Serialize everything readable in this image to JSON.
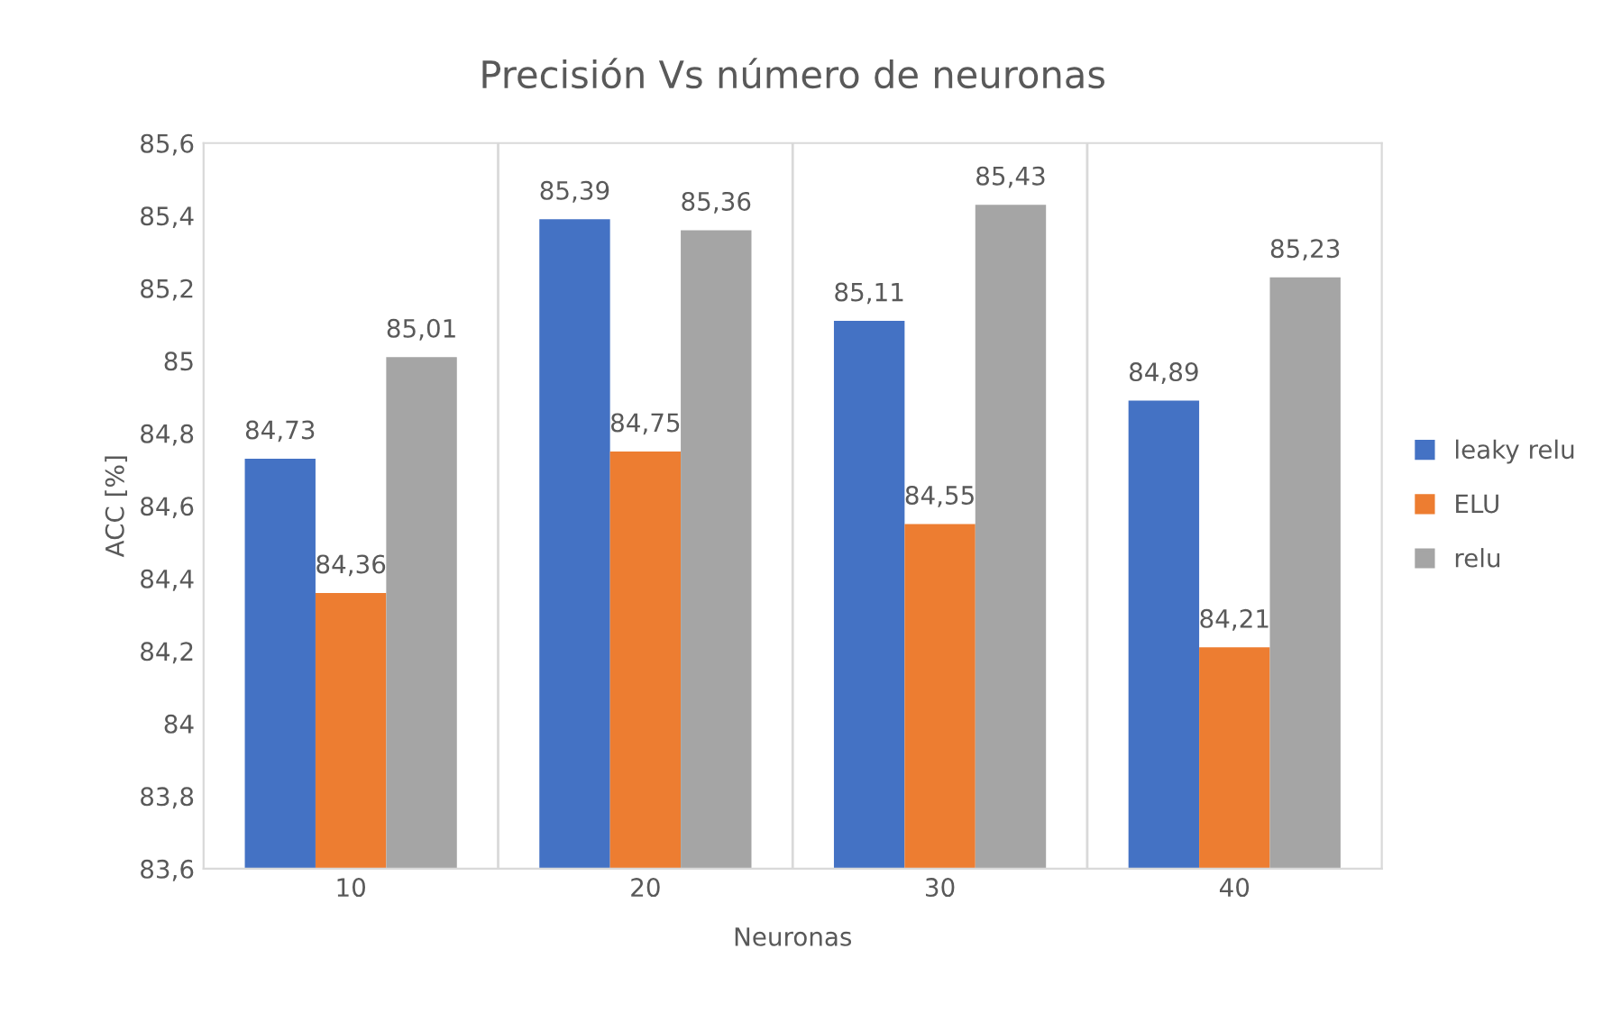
{
  "chart_data": {
    "type": "bar",
    "title": "Precisión Vs número de neuronas",
    "xlabel": "Neuronas",
    "ylabel": "ACC [%]",
    "categories": [
      "10",
      "20",
      "30",
      "40"
    ],
    "series": [
      {
        "name": "leaky relu",
        "color": "#4472c4",
        "values": [
          84.73,
          85.39,
          85.11,
          84.89
        ],
        "value_labels": [
          "84,73",
          "85,39",
          "85,11",
          "84,89"
        ]
      },
      {
        "name": "ELU",
        "color": "#ed7d31",
        "values": [
          84.36,
          84.75,
          84.55,
          84.21
        ],
        "value_labels": [
          "84,36",
          "84,75",
          "84,55",
          "84,21"
        ]
      },
      {
        "name": "relu",
        "color": "#a5a5a5",
        "values": [
          85.01,
          85.36,
          85.43,
          85.23
        ],
        "value_labels": [
          "85,01",
          "85,36",
          "85,43",
          "85,23"
        ]
      }
    ],
    "ylim": [
      83.6,
      85.6
    ],
    "yticks": [
      {
        "value": 83.6,
        "label": "83,6"
      },
      {
        "value": 83.8,
        "label": "83,8"
      },
      84,
      {
        "value": 84.2,
        "label": "84,2"
      },
      {
        "value": 84.4,
        "label": "84,4"
      },
      {
        "value": 84.6,
        "label": "84,6"
      },
      {
        "value": 84.8,
        "label": "84,8"
      },
      85,
      {
        "value": 85.2,
        "label": "85,2"
      },
      {
        "value": 85.4,
        "label": "85,4"
      },
      {
        "value": 85.6,
        "label": "85,6"
      }
    ],
    "grid": "x",
    "legend": "right"
  }
}
